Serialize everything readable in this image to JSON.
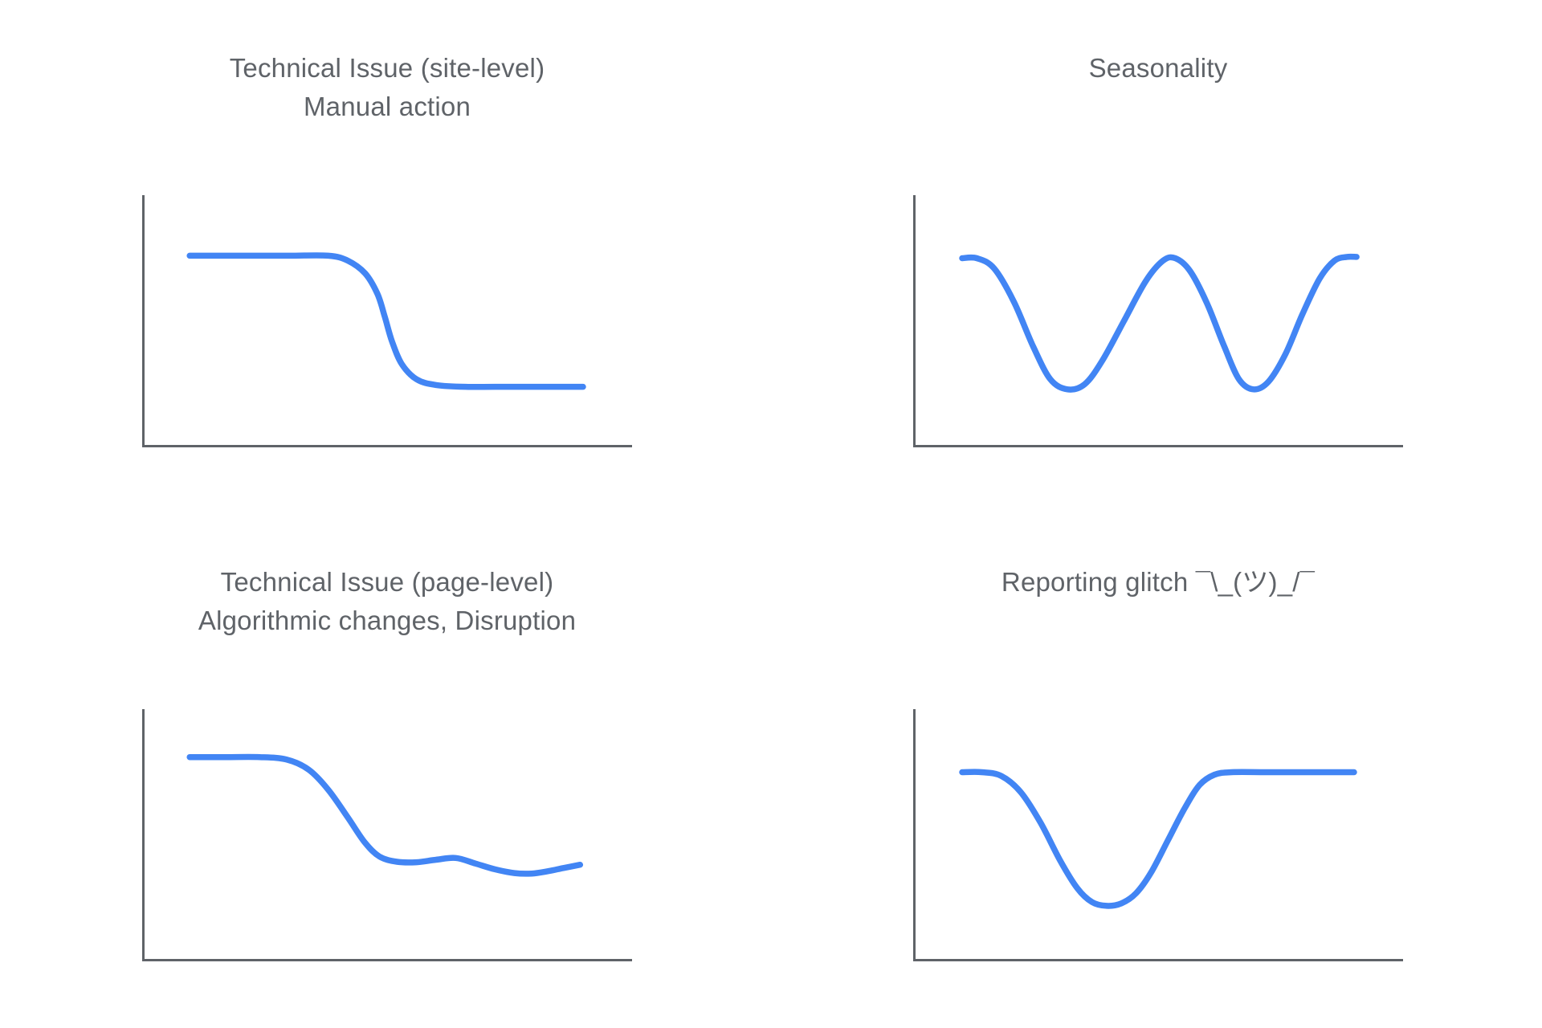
{
  "style": {
    "background": "#ffffff",
    "curve_color": "#4285f4",
    "axis_color": "#5f6368",
    "title_color": "#5f6368"
  },
  "chart_data": [
    {
      "id": "technical-issue-site-level",
      "type": "line",
      "title": "Technical Issue (site-level)\nManual action",
      "title_lines": [
        "Technical Issue (site-level)",
        "Manual action"
      ],
      "xlabel": "",
      "ylabel": "",
      "grid": false,
      "legend": false,
      "axes": {
        "x_visible": true,
        "y_visible": true,
        "ticks": false,
        "tick_labels": false
      },
      "x_range": [
        0,
        100
      ],
      "y_range": [
        0,
        100
      ],
      "pattern": "high plateau ~76, sharp sigmoid step down at x~50, low plateau ~24",
      "points": [
        [
          9.7,
          76
        ],
        [
          20,
          76
        ],
        [
          30,
          76
        ],
        [
          38,
          76
        ],
        [
          42,
          74
        ],
        [
          45.5,
          69
        ],
        [
          48,
          61
        ],
        [
          49.5,
          52
        ],
        [
          51,
          42
        ],
        [
          53,
          33
        ],
        [
          56,
          27
        ],
        [
          60,
          24.7
        ],
        [
          66,
          24
        ],
        [
          75,
          24
        ],
        [
          83,
          24
        ],
        [
          90,
          24
        ]
      ]
    },
    {
      "id": "seasonality",
      "type": "line",
      "title": "Seasonality",
      "title_lines": [
        "Seasonality"
      ],
      "xlabel": "",
      "ylabel": "",
      "grid": false,
      "legend": false,
      "axes": {
        "x_visible": true,
        "y_visible": true,
        "ticks": false,
        "tick_labels": false
      },
      "x_range": [
        0,
        100
      ],
      "y_range": [
        0,
        100
      ],
      "pattern": "wave: high ~75, dip to ~23 at x~31, peak ~75 at x~53, dip to ~23 at x~69, recover to ~75",
      "points": [
        [
          10,
          75
        ],
        [
          13,
          75
        ],
        [
          16.5,
          71
        ],
        [
          20.5,
          58
        ],
        [
          24.5,
          40
        ],
        [
          28,
          27
        ],
        [
          31.5,
          23
        ],
        [
          35,
          25
        ],
        [
          38.5,
          34
        ],
        [
          43,
          50
        ],
        [
          47.5,
          66
        ],
        [
          51,
          74
        ],
        [
          53.5,
          75
        ],
        [
          56.5,
          70
        ],
        [
          60,
          57
        ],
        [
          63.5,
          40
        ],
        [
          66.5,
          27
        ],
        [
          69.5,
          23
        ],
        [
          72.5,
          26
        ],
        [
          76,
          37
        ],
        [
          79.5,
          53
        ],
        [
          83,
          67
        ],
        [
          86,
          74
        ],
        [
          88.5,
          75.5
        ],
        [
          90.5,
          75.5
        ]
      ]
    },
    {
      "id": "technical-issue-page-level",
      "type": "line",
      "title": "Technical Issue (page-level)\nAlgorithmic changes, Disruption",
      "title_lines": [
        "Technical Issue (page-level)",
        "Algorithmic changes, Disruption"
      ],
      "xlabel": "",
      "ylabel": "",
      "grid": false,
      "legend": false,
      "axes": {
        "x_visible": true,
        "y_visible": true,
        "ticks": false,
        "tick_labels": false
      },
      "x_range": [
        0,
        100
      ],
      "y_range": [
        0,
        100
      ],
      "pattern": "high plateau ~81, gradual decline from x~30 to ~40 level, small wobble (bump ~41 at x~64, low ~35 at x~78), slight uptick to ~38 at end",
      "points": [
        [
          9.7,
          81
        ],
        [
          17,
          81
        ],
        [
          24,
          81
        ],
        [
          29.5,
          80
        ],
        [
          34,
          76
        ],
        [
          38,
          68
        ],
        [
          42,
          57
        ],
        [
          45.5,
          47
        ],
        [
          48.5,
          41.5
        ],
        [
          52,
          39.5
        ],
        [
          56,
          39.3
        ],
        [
          60,
          40.3
        ],
        [
          64,
          41
        ],
        [
          68,
          38.8
        ],
        [
          72,
          36.5
        ],
        [
          76,
          35
        ],
        [
          79.5,
          34.8
        ],
        [
          83,
          35.8
        ],
        [
          86,
          37
        ],
        [
          89.4,
          38.3
        ]
      ]
    },
    {
      "id": "reporting-glitch",
      "type": "line",
      "title": "Reporting glitch ¯\\_(ツ)_/¯",
      "title_lines": [
        "Reporting glitch ¯\\_(ツ)_/¯"
      ],
      "xlabel": "",
      "ylabel": "",
      "grid": false,
      "legend": false,
      "axes": {
        "x_visible": true,
        "y_visible": true,
        "ticks": false,
        "tick_labels": false
      },
      "x_range": [
        0,
        100
      ],
      "y_range": [
        0,
        100
      ],
      "pattern": "high plateau ~75, U-shaped dip to ~22 centered at x~40, full recovery to ~75 plateau by x~62",
      "points": [
        [
          10,
          75
        ],
        [
          14,
          75
        ],
        [
          18,
          73.5
        ],
        [
          22,
          67
        ],
        [
          26,
          55
        ],
        [
          30,
          40
        ],
        [
          33.5,
          29
        ],
        [
          36.5,
          23.5
        ],
        [
          39.5,
          22
        ],
        [
          42.5,
          23
        ],
        [
          45.5,
          27
        ],
        [
          48.5,
          35
        ],
        [
          52,
          48
        ],
        [
          55.5,
          61
        ],
        [
          58.5,
          70
        ],
        [
          61.5,
          74
        ],
        [
          65,
          75
        ],
        [
          72,
          75
        ],
        [
          80,
          75
        ],
        [
          90,
          75
        ]
      ]
    }
  ]
}
